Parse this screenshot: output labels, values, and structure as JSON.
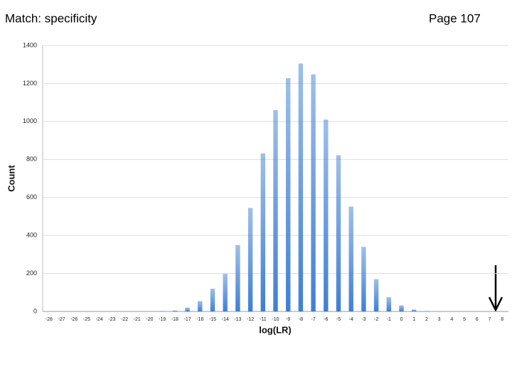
{
  "header": {
    "title": "Match: specificity",
    "page": "Page 107"
  },
  "chart_data": {
    "type": "bar",
    "x_label": "log(LR)",
    "y_label": "Count",
    "categories": [
      "-28",
      "-27",
      "-26",
      "-25",
      "-24",
      "-23",
      "-22",
      "-21",
      "-20",
      "-19",
      "-18",
      "-17",
      "-16",
      "-15",
      "-14",
      "-13",
      "-12",
      "-11",
      "-10",
      "-9",
      "-8",
      "-7",
      "-6",
      "-5",
      "-4",
      "-3",
      "-2",
      "-1",
      "0",
      "1",
      "2",
      "3",
      "4",
      "5",
      "6",
      "7",
      "8"
    ],
    "values": [
      0,
      0,
      0,
      0,
      0,
      0,
      0,
      0,
      0,
      2,
      5,
      20,
      55,
      120,
      198,
      350,
      545,
      832,
      1060,
      1228,
      1305,
      1248,
      1010,
      822,
      552,
      340,
      170,
      75,
      32,
      10,
      2,
      0,
      0,
      0,
      0,
      0,
      0
    ],
    "color": "#3f7fd4",
    "ylim": [
      0,
      1400
    ],
    "yticks": [
      0,
      200,
      400,
      600,
      800,
      1000,
      1200,
      1400
    ],
    "grid": true
  }
}
